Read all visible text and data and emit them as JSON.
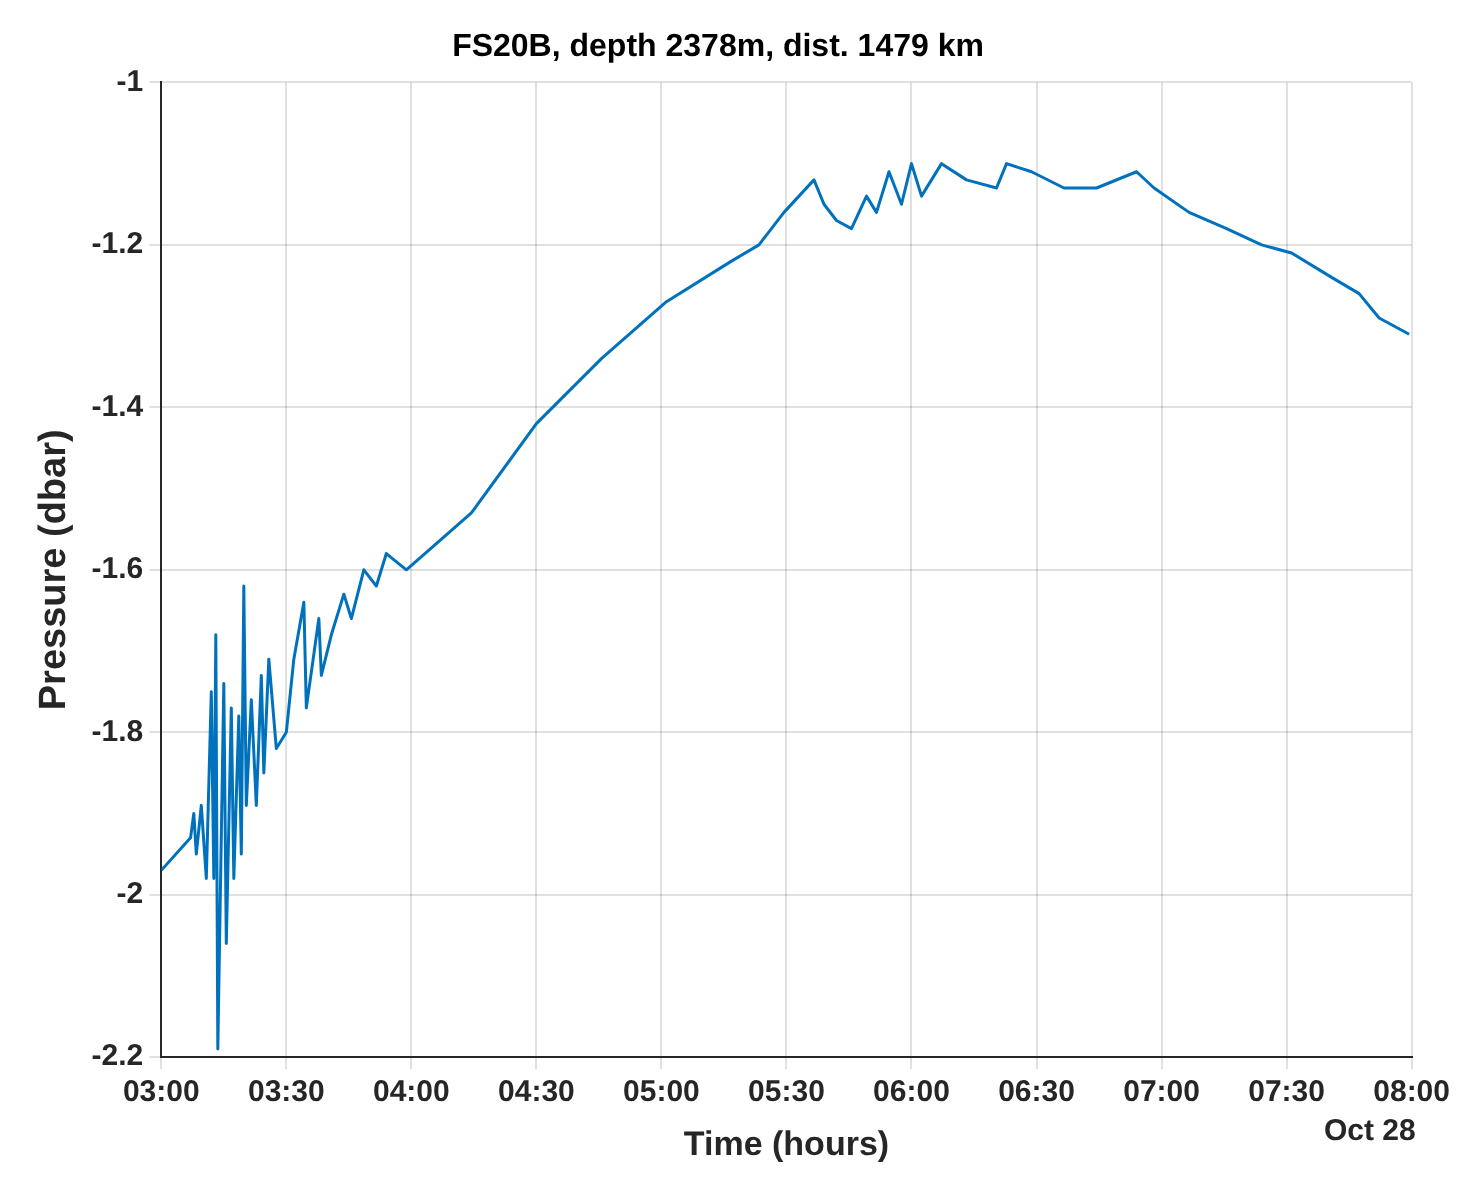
{
  "chart_data": {
    "type": "line",
    "title": "FS20B, depth 2378m, dist. 1479 km",
    "xlabel": "Time (hours)",
    "ylabel": "Pressure (dbar)",
    "annotations": [
      "Oct 28"
    ],
    "series": [
      {
        "color": "#0072bd",
        "x": [
          3.0,
          3.117,
          3.13,
          3.14,
          3.16,
          3.18,
          3.2,
          3.21,
          3.218,
          3.226,
          3.25,
          3.26,
          3.28,
          3.29,
          3.31,
          3.32,
          3.33,
          3.34,
          3.36,
          3.38,
          3.4,
          3.41,
          3.43,
          3.46,
          3.5,
          3.53,
          3.57,
          3.58,
          3.63,
          3.64,
          3.68,
          3.73,
          3.76,
          3.81,
          3.86,
          3.9,
          3.98,
          4.24,
          4.5,
          4.76,
          5.02,
          5.28,
          5.39,
          5.49,
          5.61,
          5.65,
          5.7,
          5.76,
          5.82,
          5.86,
          5.91,
          5.96,
          6.0,
          6.04,
          6.12,
          6.22,
          6.34,
          6.38,
          6.48,
          6.61,
          6.74,
          6.9,
          6.97,
          7.11,
          7.26,
          7.4,
          7.52,
          7.68,
          7.79,
          7.87,
          7.99
        ],
        "values": [
          -1.97,
          -1.93,
          -1.9,
          -1.95,
          -1.89,
          -1.98,
          -1.75,
          -1.98,
          -1.68,
          -2.19,
          -1.74,
          -2.06,
          -1.77,
          -1.98,
          -1.78,
          -1.95,
          -1.62,
          -1.89,
          -1.76,
          -1.89,
          -1.73,
          -1.85,
          -1.71,
          -1.82,
          -1.8,
          -1.71,
          -1.64,
          -1.77,
          -1.66,
          -1.73,
          -1.68,
          -1.63,
          -1.66,
          -1.6,
          -1.62,
          -1.58,
          -1.6,
          -1.53,
          -1.42,
          -1.34,
          -1.27,
          -1.22,
          -1.2,
          -1.16,
          -1.12,
          -1.15,
          -1.17,
          -1.18,
          -1.14,
          -1.16,
          -1.11,
          -1.15,
          -1.1,
          -1.14,
          -1.1,
          -1.12,
          -1.13,
          -1.1,
          -1.11,
          -1.13,
          -1.13,
          -1.11,
          -1.13,
          -1.16,
          -1.18,
          -1.2,
          -1.21,
          -1.24,
          -1.26,
          -1.29,
          -1.31
        ]
      }
    ],
    "xlim": [
      3,
      8
    ],
    "xticks": [
      {
        "value": 3,
        "label": "03:00"
      },
      {
        "value": 3.5,
        "label": "03:30"
      },
      {
        "value": 4,
        "label": "04:00"
      },
      {
        "value": 4.5,
        "label": "04:30"
      },
      {
        "value": 5,
        "label": "05:00"
      },
      {
        "value": 5.5,
        "label": "05:30"
      },
      {
        "value": 6,
        "label": "06:00"
      },
      {
        "value": 6.5,
        "label": "06:30"
      },
      {
        "value": 7,
        "label": "07:00"
      },
      {
        "value": 7.5,
        "label": "07:30"
      },
      {
        "value": 8,
        "label": "08:00"
      }
    ],
    "ylim": [
      -2.2,
      -1
    ],
    "yticks": [
      -2.2,
      -2,
      -1.8,
      -1.6,
      -1.4,
      -1.2,
      -1
    ],
    "grid": true,
    "marker": "none",
    "line_style": "solid"
  }
}
